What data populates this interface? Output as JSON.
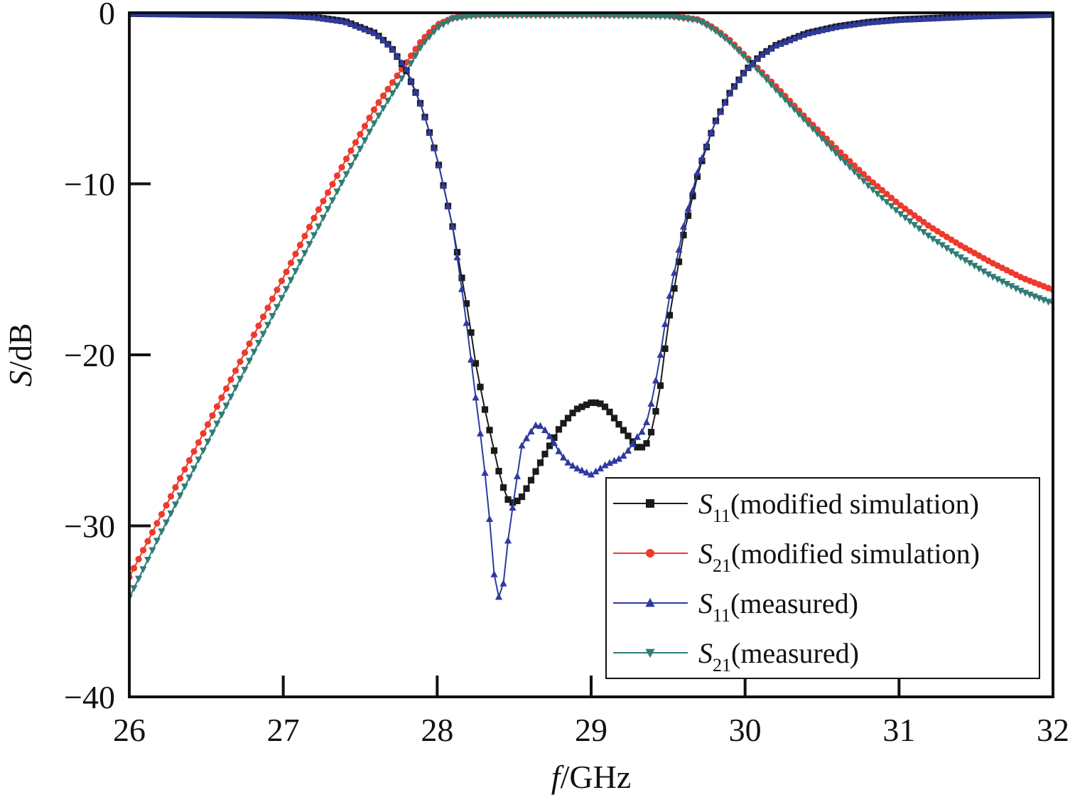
{
  "chart_data": {
    "type": "line",
    "xlabel": {
      "italic": "f",
      "rest": "/GHz"
    },
    "ylabel": {
      "italic": "S",
      "rest": "/dB"
    },
    "xlim": [
      26,
      32
    ],
    "ylim": [
      -40,
      0
    ],
    "xticks": [
      "26",
      "27",
      "28",
      "29",
      "30",
      "31",
      "32"
    ],
    "yticks": [
      "0",
      "−10",
      "−20",
      "−30",
      "−40"
    ],
    "grid": false,
    "legend_position": "bottom-right",
    "series": [
      {
        "name": "S11(modified simulation)",
        "label_main": "S",
        "label_sub": "11",
        "label_suffix": "(modified simulation)",
        "color": "#1a1a1a",
        "marker": "square",
        "x": [
          26.0,
          26.5,
          27.0,
          27.2,
          27.4,
          27.6,
          27.7,
          27.8,
          27.9,
          28.0,
          28.1,
          28.2,
          28.25,
          28.3,
          28.35,
          28.4,
          28.45,
          28.5,
          28.55,
          28.6,
          28.7,
          28.8,
          28.9,
          29.0,
          29.05,
          29.1,
          29.2,
          29.3,
          29.35,
          29.4,
          29.45,
          29.5,
          29.6,
          29.7,
          29.8,
          29.9,
          30.0,
          30.1,
          30.2,
          30.4,
          30.6,
          30.8,
          31.0,
          31.5,
          32.0
        ],
        "y": [
          -0.05,
          -0.1,
          -0.15,
          -0.25,
          -0.5,
          -1.2,
          -2.0,
          -3.4,
          -5.5,
          -8.5,
          -12.5,
          -17.5,
          -20.5,
          -22.8,
          -24.8,
          -26.8,
          -28.4,
          -28.7,
          -28.3,
          -27.5,
          -25.8,
          -24.2,
          -23.2,
          -22.8,
          -22.8,
          -23.1,
          -24.3,
          -25.4,
          -25.4,
          -24.3,
          -21.8,
          -18.2,
          -13.0,
          -9.2,
          -6.5,
          -4.7,
          -3.4,
          -2.5,
          -1.9,
          -1.2,
          -0.8,
          -0.55,
          -0.4,
          -0.2,
          -0.1
        ]
      },
      {
        "name": "S21(modified simulation)",
        "label_main": "S",
        "label_sub": "21",
        "label_suffix": "(modified simulation)",
        "color": "#ee3a2c",
        "marker": "circle",
        "x": [
          26.0,
          26.2,
          26.4,
          26.6,
          26.8,
          27.0,
          27.2,
          27.4,
          27.6,
          27.8,
          27.9,
          28.0,
          28.1,
          28.2,
          28.3,
          28.5,
          29.0,
          29.5,
          29.7,
          29.8,
          29.9,
          30.0,
          30.1,
          30.2,
          30.4,
          30.6,
          30.8,
          31.0,
          31.2,
          31.4,
          31.6,
          31.8,
          32.0
        ],
        "y": [
          -33.0,
          -29.5,
          -26.0,
          -22.5,
          -19.0,
          -15.5,
          -12.0,
          -8.7,
          -5.5,
          -2.9,
          -1.6,
          -0.7,
          -0.3,
          -0.15,
          -0.1,
          -0.1,
          -0.1,
          -0.15,
          -0.4,
          -0.9,
          -1.6,
          -2.5,
          -3.4,
          -4.3,
          -6.2,
          -8.0,
          -9.7,
          -11.2,
          -12.5,
          -13.6,
          -14.6,
          -15.5,
          -16.2
        ]
      },
      {
        "name": "S11(measured)",
        "label_main": "S",
        "label_sub": "11",
        "label_suffix": "(measured)",
        "color": "#2e3aa0",
        "marker": "triangle-up",
        "x": [
          26.0,
          26.5,
          27.0,
          27.2,
          27.4,
          27.6,
          27.7,
          27.8,
          27.9,
          28.0,
          28.1,
          28.15,
          28.2,
          28.25,
          28.3,
          28.35,
          28.38,
          28.42,
          28.45,
          28.5,
          28.55,
          28.6,
          28.65,
          28.7,
          28.75,
          28.8,
          28.85,
          28.9,
          29.0,
          29.1,
          29.2,
          29.25,
          29.3,
          29.35,
          29.4,
          29.45,
          29.5,
          29.6,
          29.7,
          29.8,
          29.9,
          30.0,
          30.1,
          30.2,
          30.4,
          30.6,
          30.8,
          31.0,
          31.5,
          32.0
        ],
        "y": [
          -0.05,
          -0.1,
          -0.15,
          -0.25,
          -0.5,
          -1.2,
          -2.0,
          -3.3,
          -5.5,
          -8.5,
          -12.5,
          -15.5,
          -18.8,
          -22.5,
          -26.0,
          -30.5,
          -34.0,
          -34.3,
          -31.5,
          -28.3,
          -25.3,
          -24.6,
          -24.0,
          -24.4,
          -25.0,
          -25.8,
          -26.3,
          -26.6,
          -27.0,
          -26.4,
          -26.0,
          -25.5,
          -24.8,
          -24.3,
          -22.5,
          -20.0,
          -17.0,
          -12.5,
          -9.0,
          -6.5,
          -4.7,
          -3.4,
          -2.5,
          -1.9,
          -1.2,
          -0.8,
          -0.55,
          -0.4,
          -0.2,
          -0.1
        ]
      },
      {
        "name": "S21(measured)",
        "label_main": "S",
        "label_sub": "21",
        "label_suffix": "(measured)",
        "color": "#2f7d75",
        "marker": "triangle-down",
        "x": [
          26.0,
          26.2,
          26.4,
          26.6,
          26.8,
          27.0,
          27.2,
          27.4,
          27.6,
          27.8,
          27.9,
          28.0,
          28.1,
          28.2,
          28.3,
          28.5,
          29.0,
          29.5,
          29.7,
          29.8,
          29.9,
          30.0,
          30.1,
          30.2,
          30.4,
          30.6,
          30.8,
          31.0,
          31.2,
          31.4,
          31.6,
          31.8,
          32.0
        ],
        "y": [
          -34.2,
          -30.5,
          -27.0,
          -23.5,
          -20.0,
          -16.5,
          -13.0,
          -9.6,
          -6.3,
          -3.4,
          -1.9,
          -0.9,
          -0.35,
          -0.2,
          -0.15,
          -0.15,
          -0.15,
          -0.2,
          -0.45,
          -1.0,
          -1.7,
          -2.6,
          -3.5,
          -4.5,
          -6.4,
          -8.3,
          -10.1,
          -11.7,
          -13.1,
          -14.3,
          -15.4,
          -16.3,
          -17.0
        ]
      }
    ]
  }
}
